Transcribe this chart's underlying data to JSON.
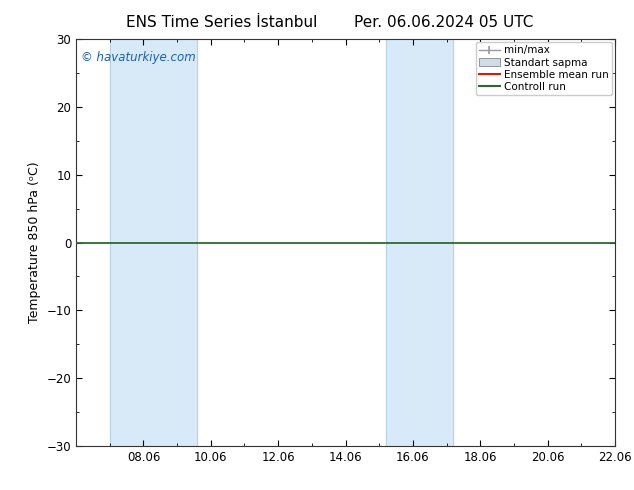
{
  "title_left": "ENS Time Series İstanbul",
  "title_right": "Per. 06.06.2024 05 UTC",
  "ylabel": "Temperature 850 hPa (ᵒC)",
  "ylim": [
    -30,
    30
  ],
  "yticks": [
    -30,
    -20,
    -10,
    0,
    10,
    20,
    30
  ],
  "xlim_start": 0.0,
  "xlim_end": 16.0,
  "xtick_labels": [
    "08.06",
    "10.06",
    "12.06",
    "14.06",
    "16.06",
    "18.06",
    "20.06",
    "22.06"
  ],
  "xtick_positions": [
    2,
    4,
    6,
    8,
    10,
    12,
    14,
    16
  ],
  "shaded_bands": [
    {
      "xmin": 1.0,
      "xmax": 3.6
    },
    {
      "xmin": 9.2,
      "xmax": 11.2
    }
  ],
  "band_color": "#d8eaf8",
  "band_edge_color": "#b0cce0",
  "control_run_color": "#2d6a2d",
  "ensemble_mean_color": "#cc2200",
  "watermark": "© havaturkiye.com",
  "watermark_color": "#1a5fb4",
  "legend_labels": [
    "min/max",
    "Standart sapma",
    "Ensemble mean run",
    "Controll run"
  ],
  "background_color": "#ffffff",
  "spine_color": "#333333",
  "title_fontsize": 11,
  "axis_label_fontsize": 9,
  "tick_fontsize": 8.5,
  "watermark_fontsize": 8.5
}
